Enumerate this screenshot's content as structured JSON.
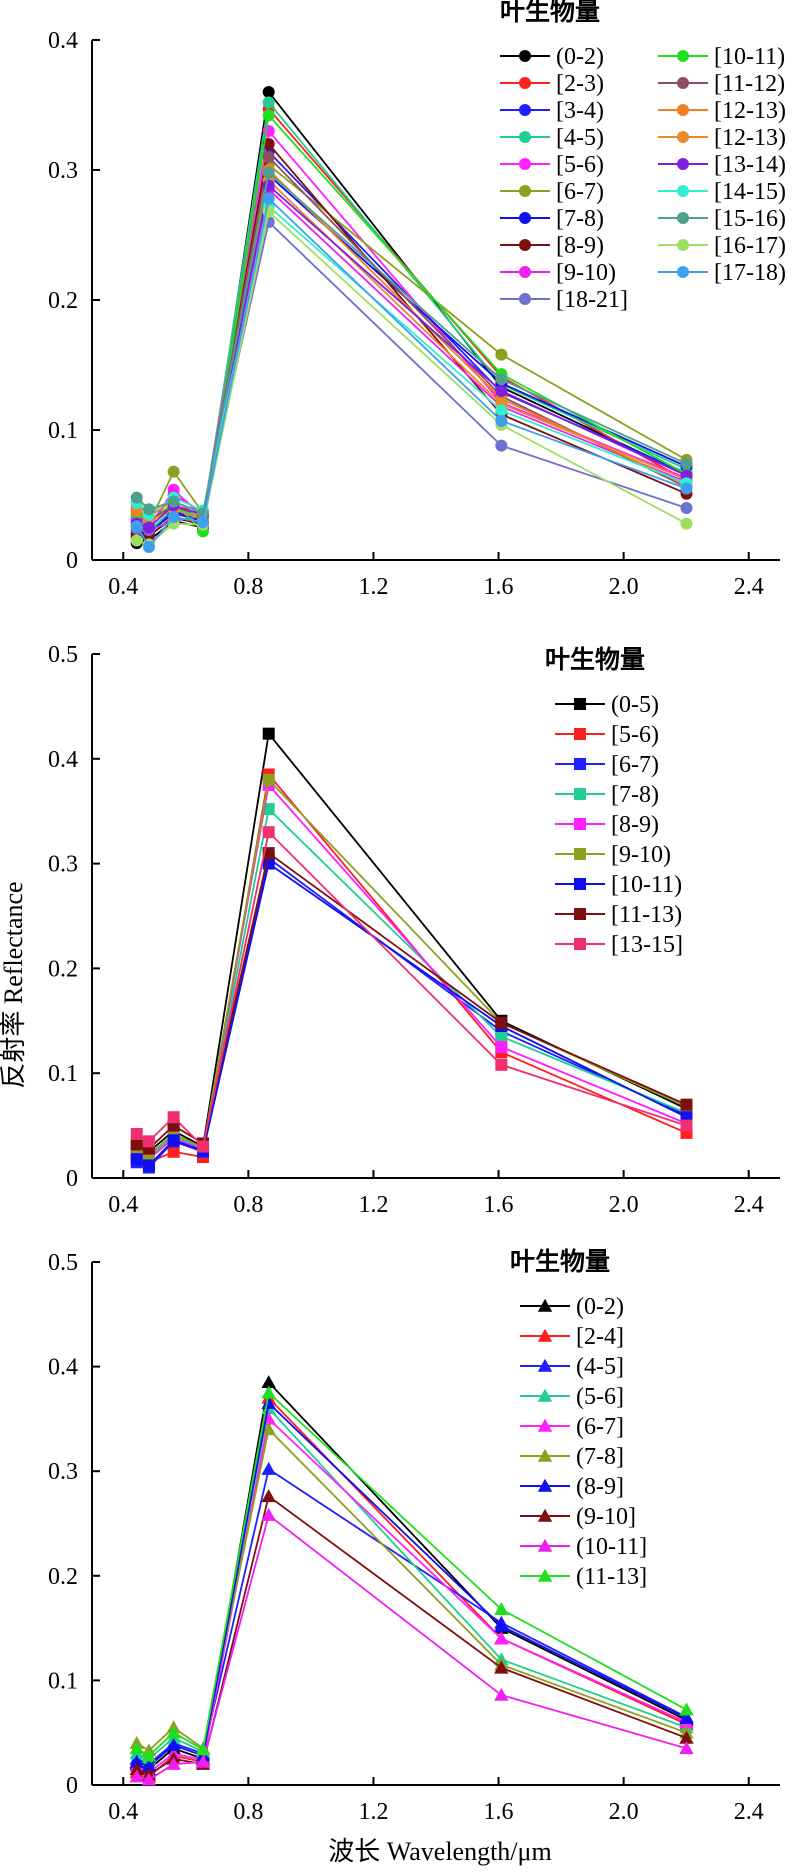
{
  "shared_ylabel": "反射率 Reflectance",
  "shared_xlabel": "波长 Wavelength/μm",
  "chart_data": [
    {
      "type": "line",
      "marker": "circle",
      "legend_title": "叶生物量",
      "legend_columns": 2,
      "legend_placement": "top-right",
      "xlim": [
        0.3,
        2.5
      ],
      "ylim": [
        0,
        0.4
      ],
      "xticks": [
        "0.4",
        "0.8",
        "1.2",
        "1.6",
        "2.0",
        "2.4"
      ],
      "yticks": [
        "0",
        "0.1",
        "0.2",
        "0.3",
        "0.4"
      ],
      "grid": false,
      "x": [
        0.443,
        0.482,
        0.561,
        0.655,
        0.865,
        1.609,
        2.201
      ],
      "series": [
        {
          "name": "(0-2)",
          "color": "#000000",
          "values": [
            0.013,
            0.015,
            0.03,
            0.025,
            0.36,
            0.133,
            0.066
          ]
        },
        {
          "name": "[2-3)",
          "color": "#ff1f1f",
          "values": [
            0.016,
            0.018,
            0.034,
            0.026,
            0.347,
            0.141,
            0.061
          ]
        },
        {
          "name": "[3-4)",
          "color": "#1f1fff",
          "values": [
            0.022,
            0.02,
            0.038,
            0.03,
            0.314,
            0.129,
            0.067
          ]
        },
        {
          "name": "[4-5)",
          "color": "#1fcf8f",
          "values": [
            0.026,
            0.022,
            0.04,
            0.032,
            0.352,
            0.135,
            0.07
          ]
        },
        {
          "name": "[5-6)",
          "color": "#ff1fff",
          "values": [
            0.03,
            0.024,
            0.054,
            0.033,
            0.33,
            0.121,
            0.063
          ]
        },
        {
          "name": "[6-7)",
          "color": "#8f9f1f",
          "values": [
            0.034,
            0.028,
            0.068,
            0.036,
            0.304,
            0.158,
            0.077
          ]
        },
        {
          "name": "[7-8)",
          "color": "#0f0fef",
          "values": [
            0.02,
            0.021,
            0.036,
            0.03,
            0.296,
            0.136,
            0.072
          ]
        },
        {
          "name": "[8-9)",
          "color": "#7f0f0f",
          "values": [
            0.018,
            0.019,
            0.032,
            0.028,
            0.32,
            0.112,
            0.051
          ]
        },
        {
          "name": "[9-10)",
          "color": "#ef1fef",
          "values": [
            0.032,
            0.027,
            0.05,
            0.037,
            0.285,
            0.118,
            0.06
          ]
        },
        {
          "name": "[18-21]",
          "color": "#6f6fcf",
          "values": [
            0.024,
            0.023,
            0.03,
            0.034,
            0.26,
            0.088,
            0.04
          ]
        },
        {
          "name": "[10-11)",
          "color": "#1fdf1f",
          "values": [
            0.036,
            0.029,
            0.044,
            0.022,
            0.342,
            0.143,
            0.066
          ]
        },
        {
          "name": "[11-12)",
          "color": "#8f4f5f",
          "values": [
            0.04,
            0.031,
            0.041,
            0.034,
            0.31,
            0.126,
            0.056
          ]
        },
        {
          "name": "[12-13)",
          "color": "#ef7f1f",
          "values": [
            0.038,
            0.033,
            0.046,
            0.032,
            0.3,
            0.124,
            0.058
          ]
        },
        {
          "name": "[12-13)",
          "color": "#e88a2e",
          "values": [
            0.042,
            0.03,
            0.039,
            0.031,
            0.292,
            0.12,
            0.062
          ]
        },
        {
          "name": "[13-14)",
          "color": "#7f1fdf",
          "values": [
            0.028,
            0.025,
            0.042,
            0.035,
            0.288,
            0.13,
            0.065
          ]
        },
        {
          "name": "[14-15)",
          "color": "#2fefcf",
          "values": [
            0.044,
            0.035,
            0.048,
            0.038,
            0.272,
            0.115,
            0.059
          ]
        },
        {
          "name": "[15-16)",
          "color": "#4f9f8f",
          "values": [
            0.048,
            0.039,
            0.045,
            0.036,
            0.298,
            0.139,
            0.074
          ]
        },
        {
          "name": "[16-17)",
          "color": "#9fdf5f",
          "values": [
            0.015,
            0.012,
            0.028,
            0.027,
            0.268,
            0.104,
            0.028
          ]
        },
        {
          "name": "[17-18)",
          "color": "#3f9fef",
          "values": [
            0.026,
            0.01,
            0.033,
            0.029,
            0.278,
            0.107,
            0.055
          ]
        }
      ]
    },
    {
      "type": "line",
      "marker": "square",
      "legend_title": "叶生物量",
      "legend_columns": 1,
      "legend_placement": "top-right",
      "xlim": [
        0.3,
        2.5
      ],
      "ylim": [
        0,
        0.5
      ],
      "xticks": [
        "0.4",
        "0.8",
        "1.2",
        "1.6",
        "2.0",
        "2.4"
      ],
      "yticks": [
        "0",
        "0.1",
        "0.2",
        "0.3",
        "0.4",
        "0.5"
      ],
      "grid": false,
      "x": [
        0.443,
        0.482,
        0.561,
        0.655,
        0.865,
        1.609,
        2.201
      ],
      "series": [
        {
          "name": "(0-5)",
          "color": "#000000",
          "values": [
            0.03,
            0.025,
            0.045,
            0.03,
            0.424,
            0.15,
            0.066
          ]
        },
        {
          "name": "[5-6)",
          "color": "#ff1f1f",
          "values": [
            0.02,
            0.015,
            0.025,
            0.02,
            0.385,
            0.12,
            0.043
          ]
        },
        {
          "name": "[6-7)",
          "color": "#1f1fff",
          "values": [
            0.015,
            0.01,
            0.035,
            0.025,
            0.305,
            0.14,
            0.06
          ]
        },
        {
          "name": "[7-8)",
          "color": "#1fcf8f",
          "values": [
            0.025,
            0.02,
            0.04,
            0.028,
            0.352,
            0.135,
            0.062
          ]
        },
        {
          "name": "[8-9)",
          "color": "#ff1fff",
          "values": [
            0.022,
            0.018,
            0.038,
            0.027,
            0.375,
            0.125,
            0.052
          ]
        },
        {
          "name": "[9-10)",
          "color": "#8f9f1f",
          "values": [
            0.028,
            0.022,
            0.042,
            0.029,
            0.38,
            0.148,
            0.068
          ]
        },
        {
          "name": "[10-11)",
          "color": "#0f0fef",
          "values": [
            0.018,
            0.012,
            0.036,
            0.026,
            0.3,
            0.145,
            0.058
          ]
        },
        {
          "name": "[11-13)",
          "color": "#7f0f0f",
          "values": [
            0.032,
            0.028,
            0.05,
            0.033,
            0.31,
            0.148,
            0.07
          ]
        },
        {
          "name": "[13-15]",
          "color": "#ef2f6f",
          "values": [
            0.042,
            0.035,
            0.058,
            0.03,
            0.33,
            0.108,
            0.05
          ]
        }
      ]
    },
    {
      "type": "line",
      "marker": "triangle",
      "legend_title": "叶生物量",
      "legend_columns": 1,
      "legend_placement": "top-right",
      "xlim": [
        0.3,
        2.5
      ],
      "ylim": [
        0,
        0.5
      ],
      "xticks": [
        "0.4",
        "0.8",
        "1.2",
        "1.6",
        "2.0",
        "2.4"
      ],
      "yticks": [
        "0",
        "0.1",
        "0.2",
        "0.3",
        "0.4",
        "0.5"
      ],
      "grid": false,
      "x": [
        0.443,
        0.482,
        0.561,
        0.655,
        0.865,
        1.609,
        2.201
      ],
      "series": [
        {
          "name": "(0-2)",
          "color": "#000000",
          "values": [
            0.02,
            0.015,
            0.035,
            0.025,
            0.385,
            0.15,
            0.062
          ]
        },
        {
          "name": "[2-4]",
          "color": "#ff1f1f",
          "values": [
            0.012,
            0.008,
            0.028,
            0.022,
            0.37,
            0.14,
            0.058
          ]
        },
        {
          "name": "(4-5]",
          "color": "#1f1fff",
          "values": [
            0.025,
            0.02,
            0.04,
            0.03,
            0.302,
            0.155,
            0.065
          ]
        },
        {
          "name": "(5-6]",
          "color": "#1fcf8f",
          "values": [
            0.03,
            0.025,
            0.045,
            0.032,
            0.36,
            0.12,
            0.055
          ]
        },
        {
          "name": "(6-7]",
          "color": "#ff1fff",
          "values": [
            0.018,
            0.012,
            0.03,
            0.024,
            0.35,
            0.14,
            0.06
          ]
        },
        {
          "name": "(7-8]",
          "color": "#8f9f1f",
          "values": [
            0.04,
            0.033,
            0.055,
            0.035,
            0.34,
            0.115,
            0.05
          ]
        },
        {
          "name": "(8-9]",
          "color": "#0f0fef",
          "values": [
            0.022,
            0.018,
            0.038,
            0.028,
            0.365,
            0.152,
            0.064
          ]
        },
        {
          "name": "(9-10]",
          "color": "#7f0f0f",
          "values": [
            0.015,
            0.01,
            0.025,
            0.02,
            0.276,
            0.112,
            0.045
          ]
        },
        {
          "name": "(10-11]",
          "color": "#ef1fef",
          "values": [
            0.008,
            0.005,
            0.02,
            0.022,
            0.258,
            0.086,
            0.035
          ]
        },
        {
          "name": "(11-13]",
          "color": "#1fdf1f",
          "values": [
            0.035,
            0.028,
            0.05,
            0.034,
            0.375,
            0.168,
            0.072
          ]
        }
      ]
    }
  ]
}
